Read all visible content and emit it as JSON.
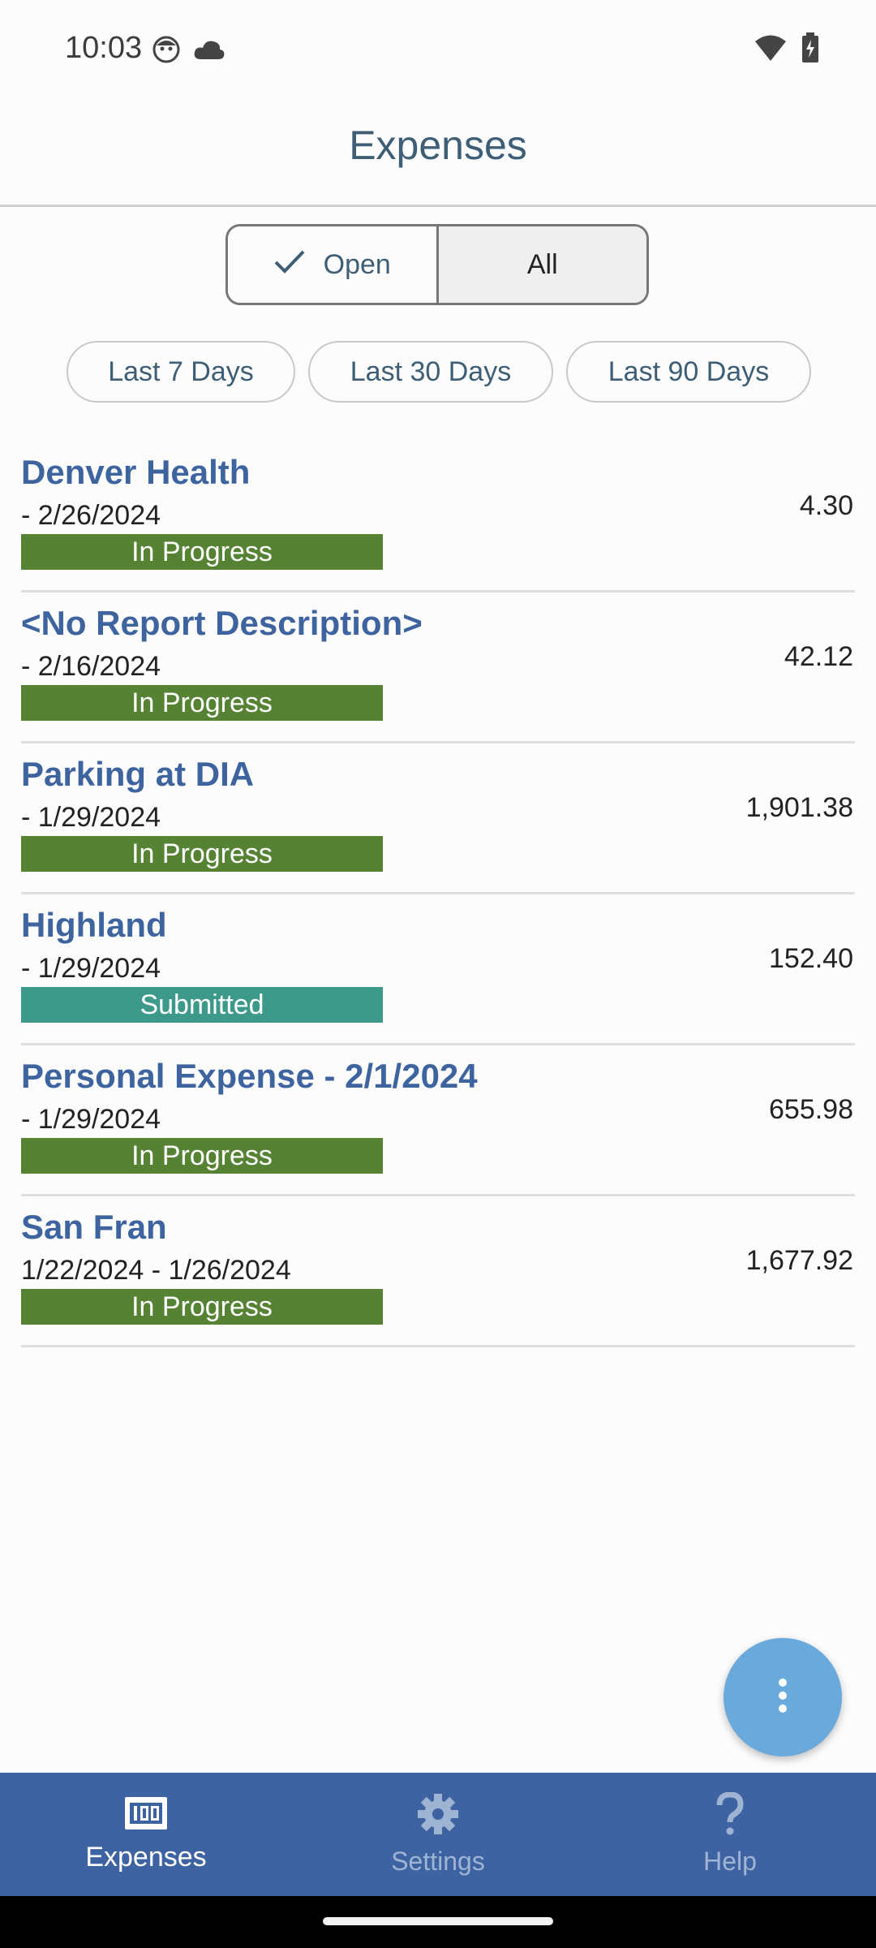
{
  "status_bar": {
    "time": "10:03"
  },
  "app_bar": {
    "title": "Expenses"
  },
  "segmented": {
    "open_label": "Open",
    "all_label": "All"
  },
  "chips": [
    "Last 7 Days",
    "Last 30 Days",
    "Last 90 Days"
  ],
  "reports": [
    {
      "title": "Denver Health",
      "date": " - 2/26/2024",
      "status": "In Progress",
      "amount": "4.30",
      "status_color": "#568233"
    },
    {
      "title": "<No Report Description>",
      "date": " - 2/16/2024",
      "status": "In Progress",
      "amount": "42.12",
      "status_color": "#568233"
    },
    {
      "title": "Parking at DIA",
      "date": " - 1/29/2024",
      "status": "In Progress",
      "amount": "1,901.38",
      "status_color": "#568233"
    },
    {
      "title": "Highland",
      "date": " - 1/29/2024",
      "status": "Submitted",
      "amount": "152.40",
      "status_color": "#3d9a8b"
    },
    {
      "title": "Personal Expense - 2/1/2024",
      "date": " - 1/29/2024",
      "status": "In Progress",
      "amount": "655.98",
      "status_color": "#568233"
    },
    {
      "title": "San Fran",
      "date": "1/22/2024 - 1/26/2024",
      "status": "In Progress",
      "amount": "1,677.92",
      "status_color": "#568233"
    }
  ],
  "fab": {
    "icon": "more-vert-icon"
  },
  "bottom_nav": {
    "items": [
      {
        "label": "Expenses",
        "icon": "receipt-icon",
        "active": true
      },
      {
        "label": "Settings",
        "icon": "gear-icon",
        "active": false
      },
      {
        "label": "Help",
        "icon": "question-icon",
        "active": false
      }
    ]
  },
  "colors": {
    "accent": "#3e63a3",
    "title_blue": "#3e64a0",
    "in_progress": "#568233",
    "submitted": "#3d9a8b",
    "fab": "#6aa9dc"
  }
}
